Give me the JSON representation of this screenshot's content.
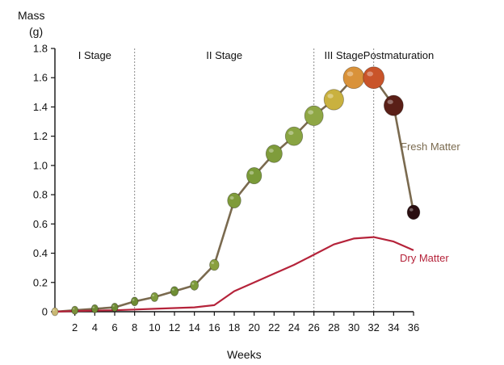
{
  "chart_data": {
    "type": "line",
    "title": "",
    "xlabel": "Weeks",
    "ylabel_line1": "Mass",
    "ylabel_line2": "(g)",
    "xlim": [
      0,
      36
    ],
    "ylim": [
      0,
      1.8
    ],
    "x_ticks": [
      2,
      4,
      6,
      8,
      10,
      12,
      14,
      16,
      18,
      20,
      22,
      24,
      26,
      28,
      30,
      32,
      34,
      36
    ],
    "y_ticks": [
      0,
      0.2,
      0.4,
      0.6,
      0.8,
      1.0,
      1.2,
      1.4,
      1.6,
      1.8
    ],
    "y_tick_labels": [
      "0",
      "0.2",
      "0.4",
      "0.6",
      "0.8",
      "1.0",
      "1.2",
      "1.4",
      "1.6",
      "1.8"
    ],
    "stage_dividers": [
      8,
      26,
      32
    ],
    "stages": [
      {
        "label": "I Stage",
        "center": 4
      },
      {
        "label": "II Stage",
        "center": 17
      },
      {
        "label": "III Stage",
        "center": 29
      },
      {
        "label": "Postmaturation",
        "center": 34.5
      }
    ],
    "series": [
      {
        "name": "Fresh Matter",
        "color": "#7a6a4f",
        "x": [
          0,
          2,
          4,
          6,
          8,
          10,
          12,
          14,
          16,
          18,
          20,
          22,
          24,
          26,
          28,
          30,
          32,
          34,
          36
        ],
        "y": [
          0,
          0.01,
          0.02,
          0.03,
          0.07,
          0.1,
          0.14,
          0.18,
          0.32,
          0.76,
          0.93,
          1.08,
          1.2,
          1.34,
          1.45,
          1.6,
          1.6,
          1.41,
          0.68
        ]
      },
      {
        "name": "Dry Matter",
        "color": "#b5233a",
        "x": [
          0,
          2,
          4,
          6,
          8,
          10,
          12,
          14,
          16,
          18,
          20,
          22,
          24,
          26,
          28,
          30,
          32,
          34,
          36
        ],
        "y": [
          0,
          0.005,
          0.008,
          0.01,
          0.015,
          0.02,
          0.025,
          0.03,
          0.045,
          0.14,
          0.2,
          0.26,
          0.32,
          0.39,
          0.46,
          0.5,
          0.51,
          0.48,
          0.42
        ]
      }
    ],
    "fruit_colors": [
      "#c9b873",
      "#7a8f3a",
      "#6f8a35",
      "#6e8a34",
      "#6d8b33",
      "#7e9a3c",
      "#6f8e34",
      "#7c9a3a",
      "#8aa03f",
      "#7f9b3a",
      "#7a9a38",
      "#7f9c3b",
      "#89a442",
      "#8fa745",
      "#c9b13f",
      "#d9923a",
      "#c9542a",
      "#5a1f17",
      "#2a0e10"
    ]
  }
}
